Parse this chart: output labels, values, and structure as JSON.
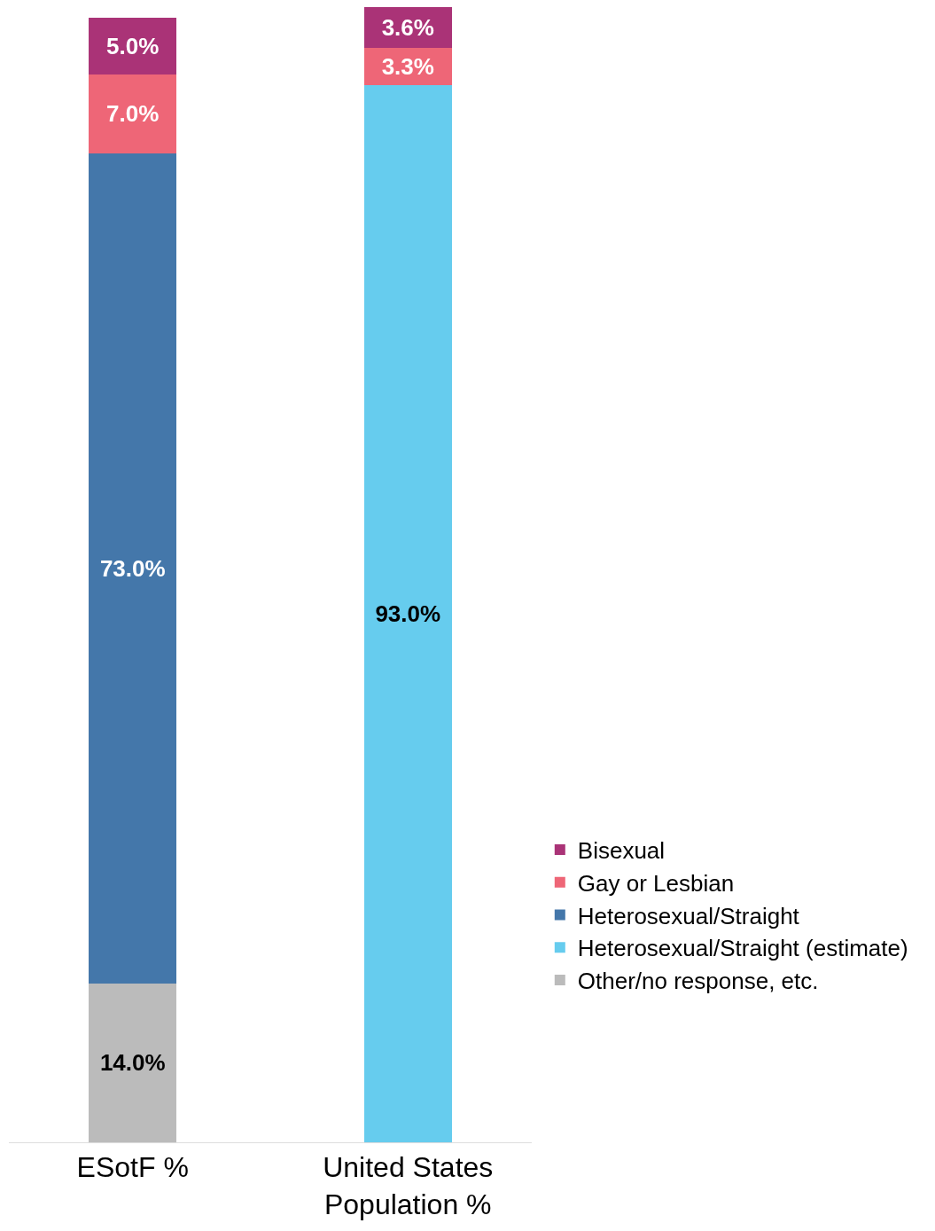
{
  "chart_data": {
    "type": "bar",
    "stacked": true,
    "categories": [
      "ESotF %",
      "United States\nPopulation %"
    ],
    "series": [
      {
        "name": "Other/no response, etc.",
        "color": "#bbbbbb",
        "values": [
          14.0,
          null
        ],
        "value_labels": [
          "14.0%",
          null
        ]
      },
      {
        "name": "Heterosexual/Straight (estimate)",
        "color": "#66ccee",
        "values": [
          null,
          93.0
        ],
        "value_labels": [
          null,
          "93.0%"
        ]
      },
      {
        "name": "Heterosexual/Straight",
        "color": "#4477aa",
        "values": [
          73.0,
          null
        ],
        "value_labels": [
          "73.0%",
          null
        ]
      },
      {
        "name": "Gay or Lesbian",
        "color": "#ee6677",
        "values": [
          7.0,
          3.3
        ],
        "value_labels": [
          "7.0%",
          "3.3%"
        ]
      },
      {
        "name": "Bisexual",
        "color": "#aa3377",
        "values": [
          5.0,
          3.6
        ],
        "value_labels": [
          "5.0%",
          "3.6%"
        ]
      }
    ],
    "legend": "right"
  }
}
